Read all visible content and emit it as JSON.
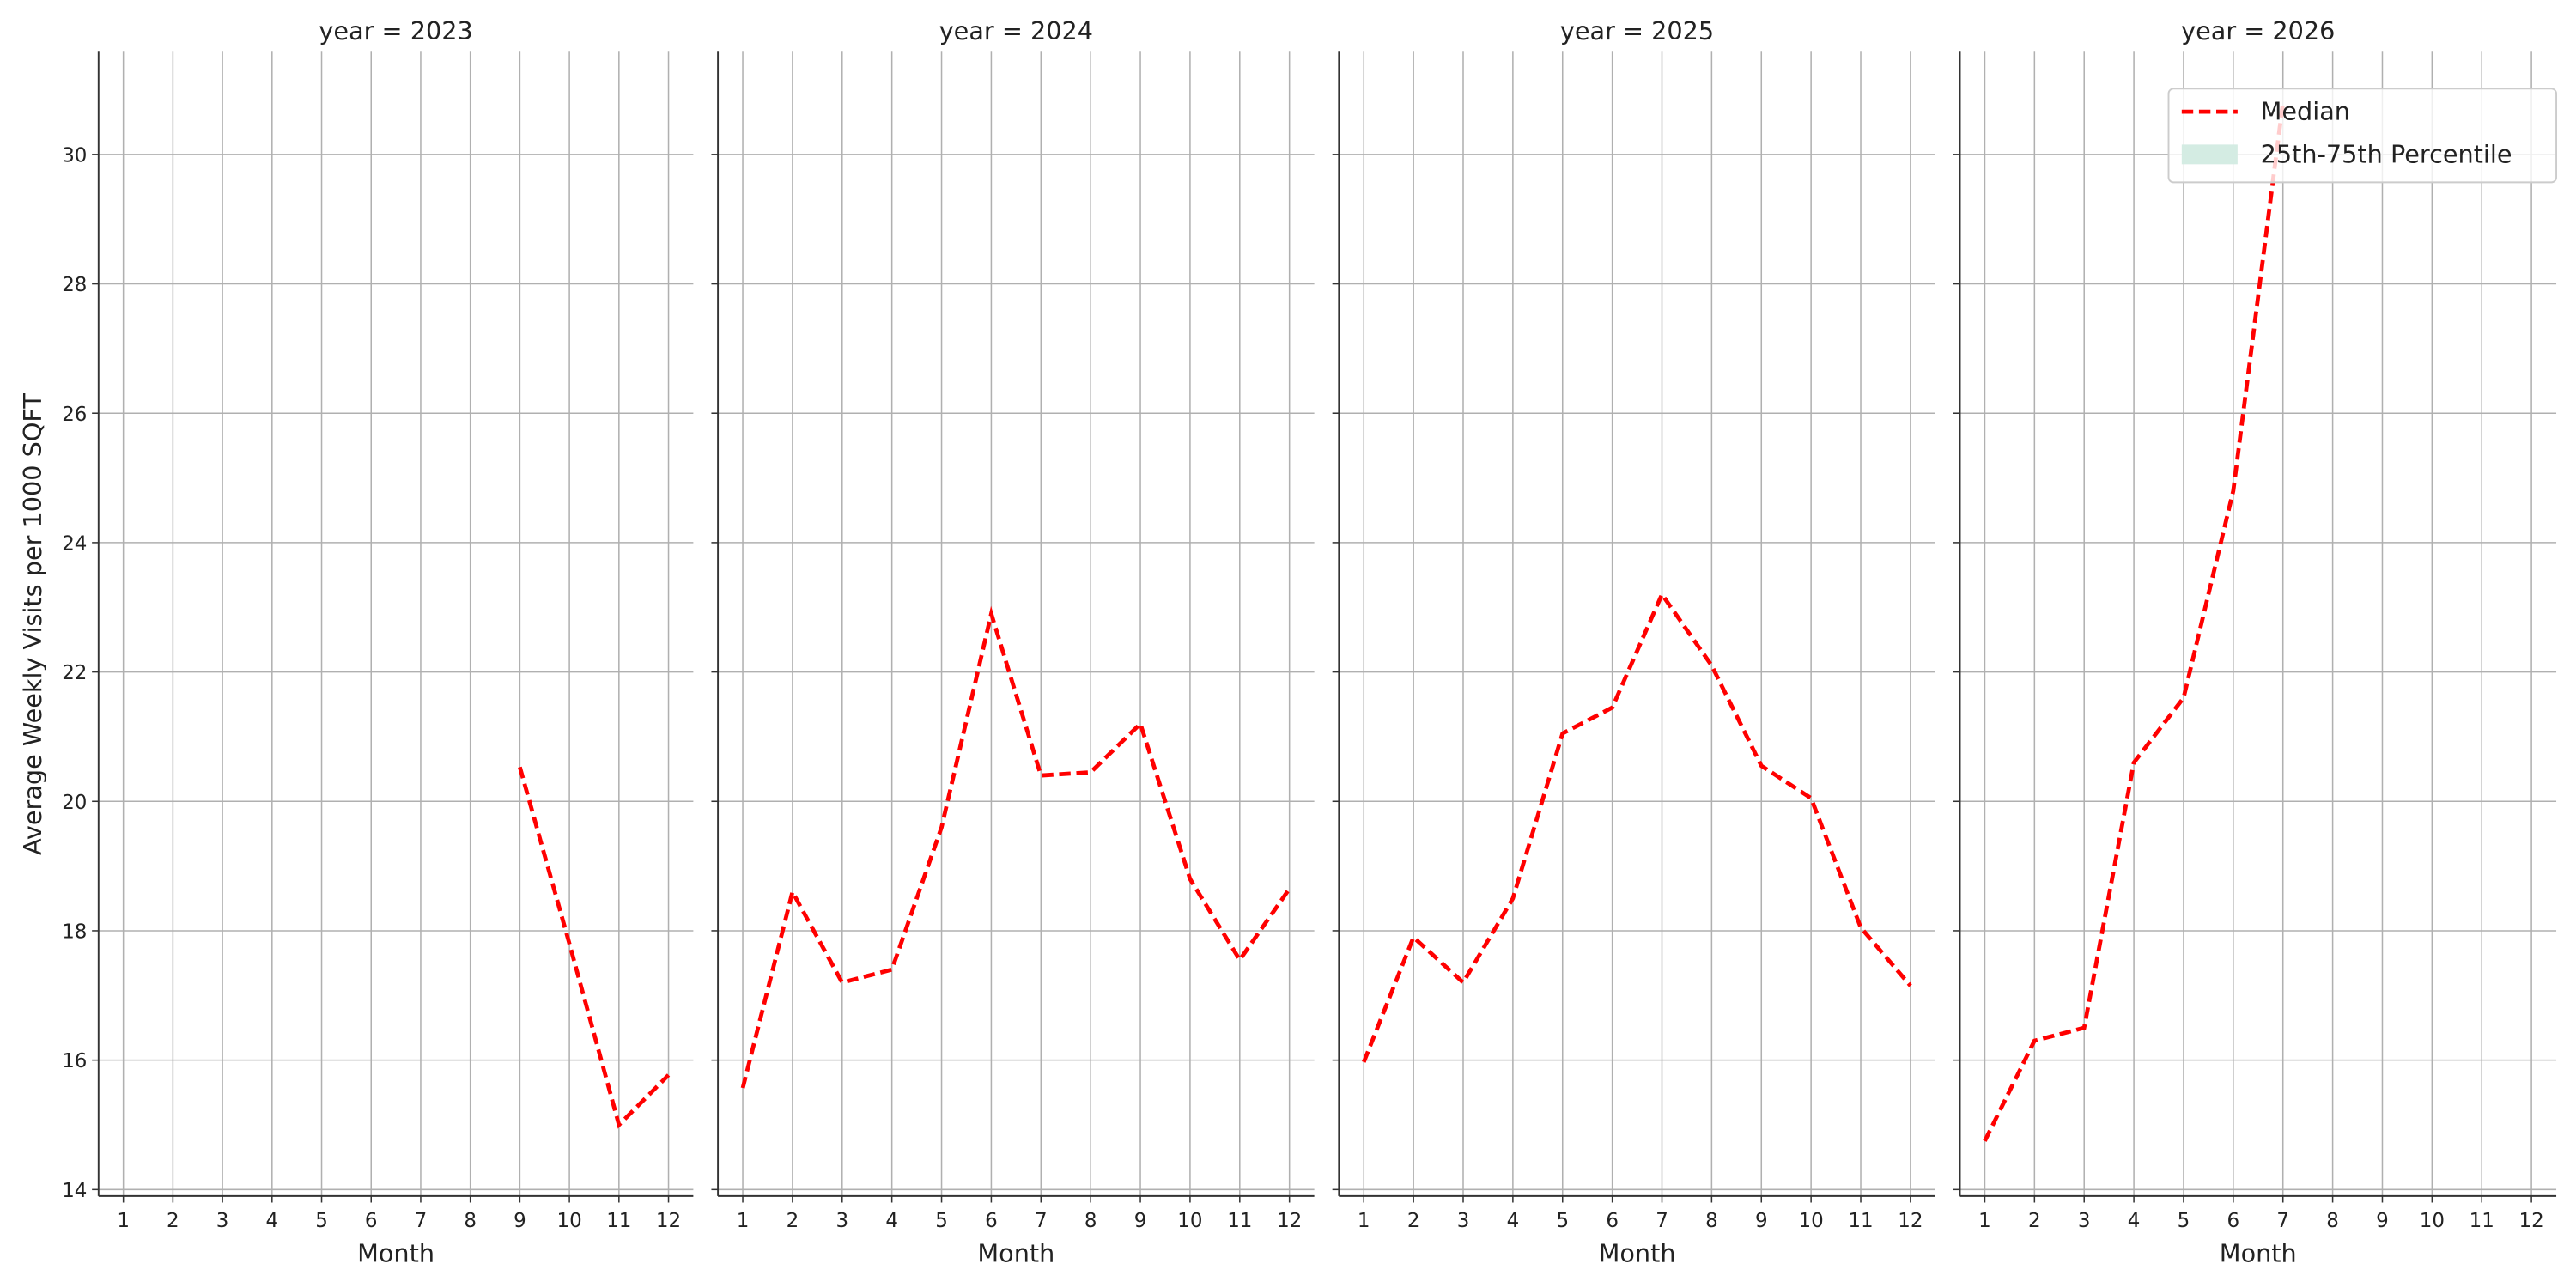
{
  "chart_data": [
    {
      "type": "line",
      "title": "year = 2023",
      "xlabel": "Month",
      "ylabel": "Average Weekly Visits per 1000 SQFT",
      "x": [
        1,
        2,
        3,
        4,
        5,
        6,
        7,
        8,
        9,
        10,
        11,
        12
      ],
      "series": [
        {
          "color": "#ff0000",
          "values": [
            null,
            null,
            null,
            null,
            null,
            null,
            null,
            null,
            20.53,
            17.8,
            15.0,
            15.77
          ]
        }
      ],
      "xlim": [
        0.5,
        12.5
      ],
      "xticks": [
        1,
        2,
        3,
        4,
        5,
        6,
        7,
        8,
        9,
        10,
        11,
        12
      ],
      "ylim": [
        13.9,
        31.6
      ],
      "yticks": [
        14,
        16,
        18,
        20,
        22,
        24,
        26,
        28,
        30
      ],
      "grid": true
    },
    {
      "type": "line",
      "title": "year = 2024",
      "xlabel": "Month",
      "x": [
        1,
        2,
        3,
        4,
        5,
        6,
        7,
        8,
        9,
        10,
        11,
        12
      ],
      "series": [
        {
          "color": "#ff0000",
          "values": [
            15.57,
            18.6,
            17.2,
            17.4,
            19.6,
            22.9,
            20.4,
            20.45,
            21.2,
            18.8,
            17.55,
            18.65
          ]
        }
      ],
      "xlim": [
        0.5,
        12.5
      ],
      "xticks": [
        1,
        2,
        3,
        4,
        5,
        6,
        7,
        8,
        9,
        10,
        11,
        12
      ],
      "ylim": [
        13.9,
        31.6
      ],
      "yticks": [
        14,
        16,
        18,
        20,
        22,
        24,
        26,
        28,
        30
      ],
      "grid": true
    },
    {
      "type": "line",
      "title": "year = 2025",
      "xlabel": "Month",
      "x": [
        1,
        2,
        3,
        4,
        5,
        6,
        7,
        8,
        9,
        10,
        11,
        12
      ],
      "series": [
        {
          "color": "#ff0000",
          "values": [
            15.97,
            17.9,
            17.2,
            18.5,
            21.05,
            21.45,
            23.2,
            22.1,
            20.55,
            20.05,
            18.05,
            17.15
          ]
        }
      ],
      "xlim": [
        0.5,
        12.5
      ],
      "xticks": [
        1,
        2,
        3,
        4,
        5,
        6,
        7,
        8,
        9,
        10,
        11,
        12
      ],
      "ylim": [
        13.9,
        31.6
      ],
      "yticks": [
        14,
        16,
        18,
        20,
        22,
        24,
        26,
        28,
        30
      ],
      "grid": true
    },
    {
      "type": "line",
      "title": "year = 2026",
      "xlabel": "Month",
      "x": [
        1,
        2,
        3,
        4,
        5,
        6,
        7,
        8,
        9,
        10,
        11,
        12
      ],
      "series": [
        {
          "name": "Median",
          "color": "#ff0000",
          "values": [
            14.75,
            16.3,
            16.5,
            20.6,
            21.6,
            24.8,
            30.8,
            null,
            null,
            null,
            null,
            null
          ]
        }
      ],
      "band": {
        "name": "25th-75th Percentile",
        "color": "#d4ece3"
      },
      "legend": "upper right",
      "xlim": [
        0.5,
        12.5
      ],
      "xticks": [
        1,
        2,
        3,
        4,
        5,
        6,
        7,
        8,
        9,
        10,
        11,
        12
      ],
      "ylim": [
        13.9,
        31.6
      ],
      "yticks": [
        14,
        16,
        18,
        20,
        22,
        24,
        26,
        28,
        30
      ],
      "grid": true
    }
  ]
}
